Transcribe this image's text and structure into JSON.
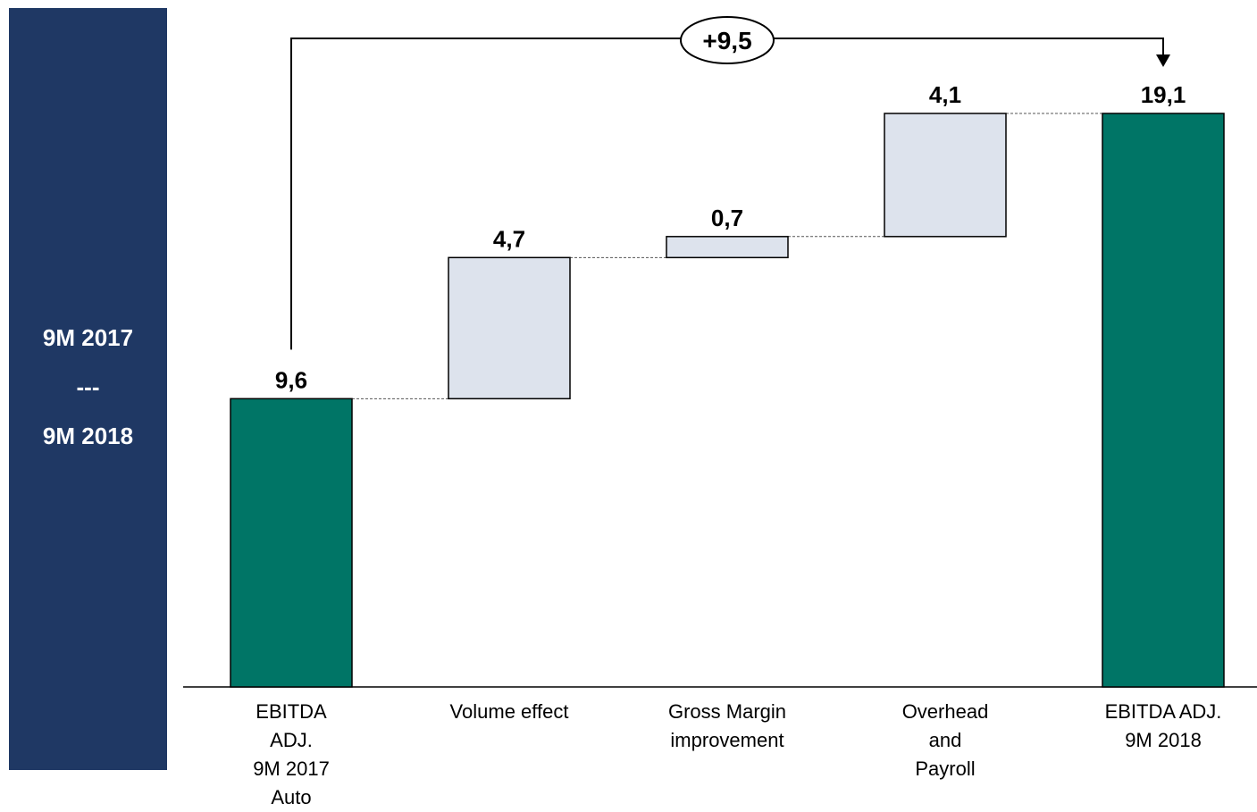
{
  "side_panel": {
    "line1": "9M 2017",
    "line2": "---",
    "line3": "9M 2018"
  },
  "colors": {
    "panel": "#1f3864",
    "total_bar": "#007566",
    "delta_bar": "#dde3ed"
  },
  "chart_data": {
    "type": "bar",
    "subtype": "waterfall",
    "categories": [
      "EBITDA\nADJ.\n9M 2017\nAuto",
      "Volume effect",
      "Gross Margin\nimprovement",
      "Overhead\nand\nPayroll",
      "EBITDA ADJ.\n9M 2018"
    ],
    "values": [
      9.6,
      4.7,
      0.7,
      4.1,
      19.1
    ],
    "kinds": [
      "total",
      "delta",
      "delta",
      "delta",
      "total"
    ],
    "value_labels": [
      "9,6",
      "4,7",
      "0,7",
      "4,1",
      "19,1"
    ],
    "ylim": [
      0,
      19.1
    ],
    "grid": false,
    "bridge": {
      "from": 0,
      "to": 4,
      "label": "+9,5"
    }
  }
}
